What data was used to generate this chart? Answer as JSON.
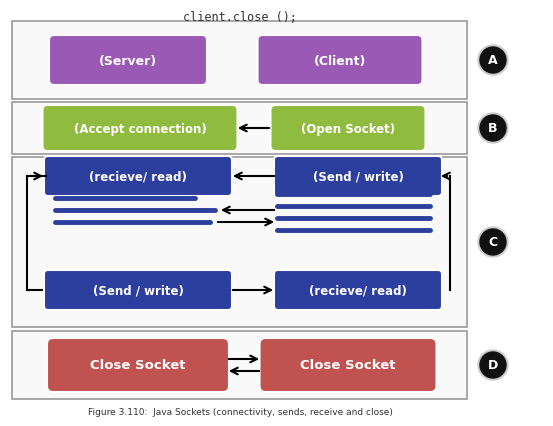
{
  "title_text": "client.close ();",
  "caption": "Figure 3.110:  Java Sockets (connectivity, sends, receive and close)",
  "background_color": "#ffffff",
  "purple_color": "#9b59b6",
  "green_color": "#8fbc3f",
  "blue_color": "#2c3e9e",
  "red_color": "#c0534f",
  "circle_color": "#111111",
  "circle_text": "#ffffff",
  "section_bg": "#f9f9f9",
  "section_border": "#999999",
  "white": "#ffffff",
  "black": "#000000",
  "server_label": "(Server)",
  "client_label": "(Client)",
  "accept_label": "(Accept connection)",
  "open_label": "(Open Socket)",
  "recv1_label": "(recieve/ read)",
  "send1_label": "(Send / write)",
  "send2_label": "(Send / write)",
  "recv2_label": "(recieve/ read)",
  "close1_label": "Close Socket",
  "close2_label": "Close Socket",
  "sections": [
    "A",
    "B",
    "C",
    "D"
  ]
}
